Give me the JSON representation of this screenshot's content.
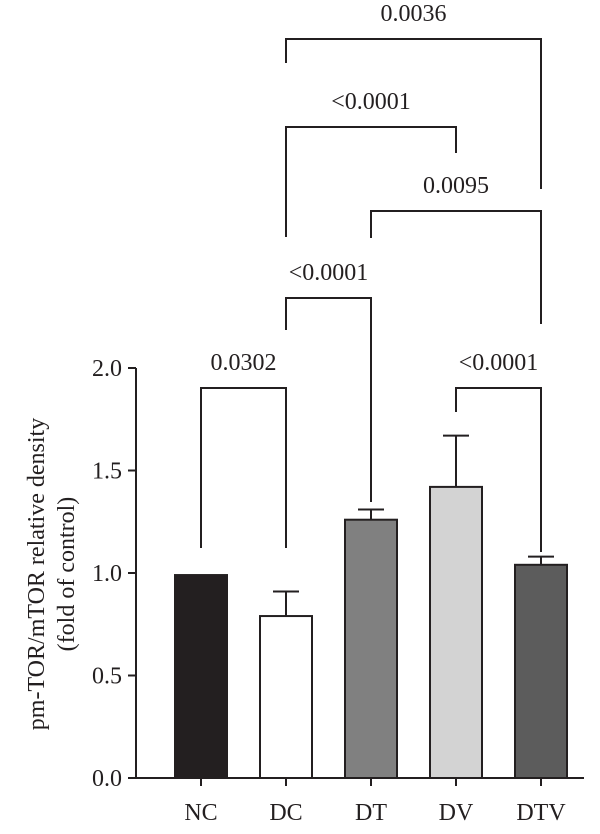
{
  "chart_data": {
    "type": "bar",
    "categories": [
      "NC",
      "DC",
      "DT",
      "DV",
      "DTV"
    ],
    "values": [
      0.99,
      0.79,
      1.26,
      1.42,
      1.04
    ],
    "errors": [
      0.0,
      0.12,
      0.05,
      0.25,
      0.04
    ],
    "colors": [
      "#231f20",
      "#ffffff",
      "#808080",
      "#d3d3d3",
      "#5c5c5c"
    ],
    "ylabel_line1": "pm-TOR/mTOR relative density",
    "ylabel_line2": "(fold of control)",
    "ylim": [
      0,
      2.0
    ],
    "yticks": [
      "0.0",
      "0.5",
      "1.0",
      "1.5",
      "2.0"
    ],
    "grid": false,
    "comparisons": [
      {
        "from": "NC",
        "to": "DC",
        "p": "0.0302"
      },
      {
        "from": "DC",
        "to": "DT",
        "p": "<0.0001"
      },
      {
        "from": "DV",
        "to": "DTV",
        "p": "<0.0001"
      },
      {
        "from": "DT",
        "to": "DTV",
        "p": "0.0095"
      },
      {
        "from": "DC",
        "to": "DV",
        "p": "<0.0001"
      },
      {
        "from": "DC",
        "to": "DTV",
        "p": "0.0036"
      }
    ]
  }
}
